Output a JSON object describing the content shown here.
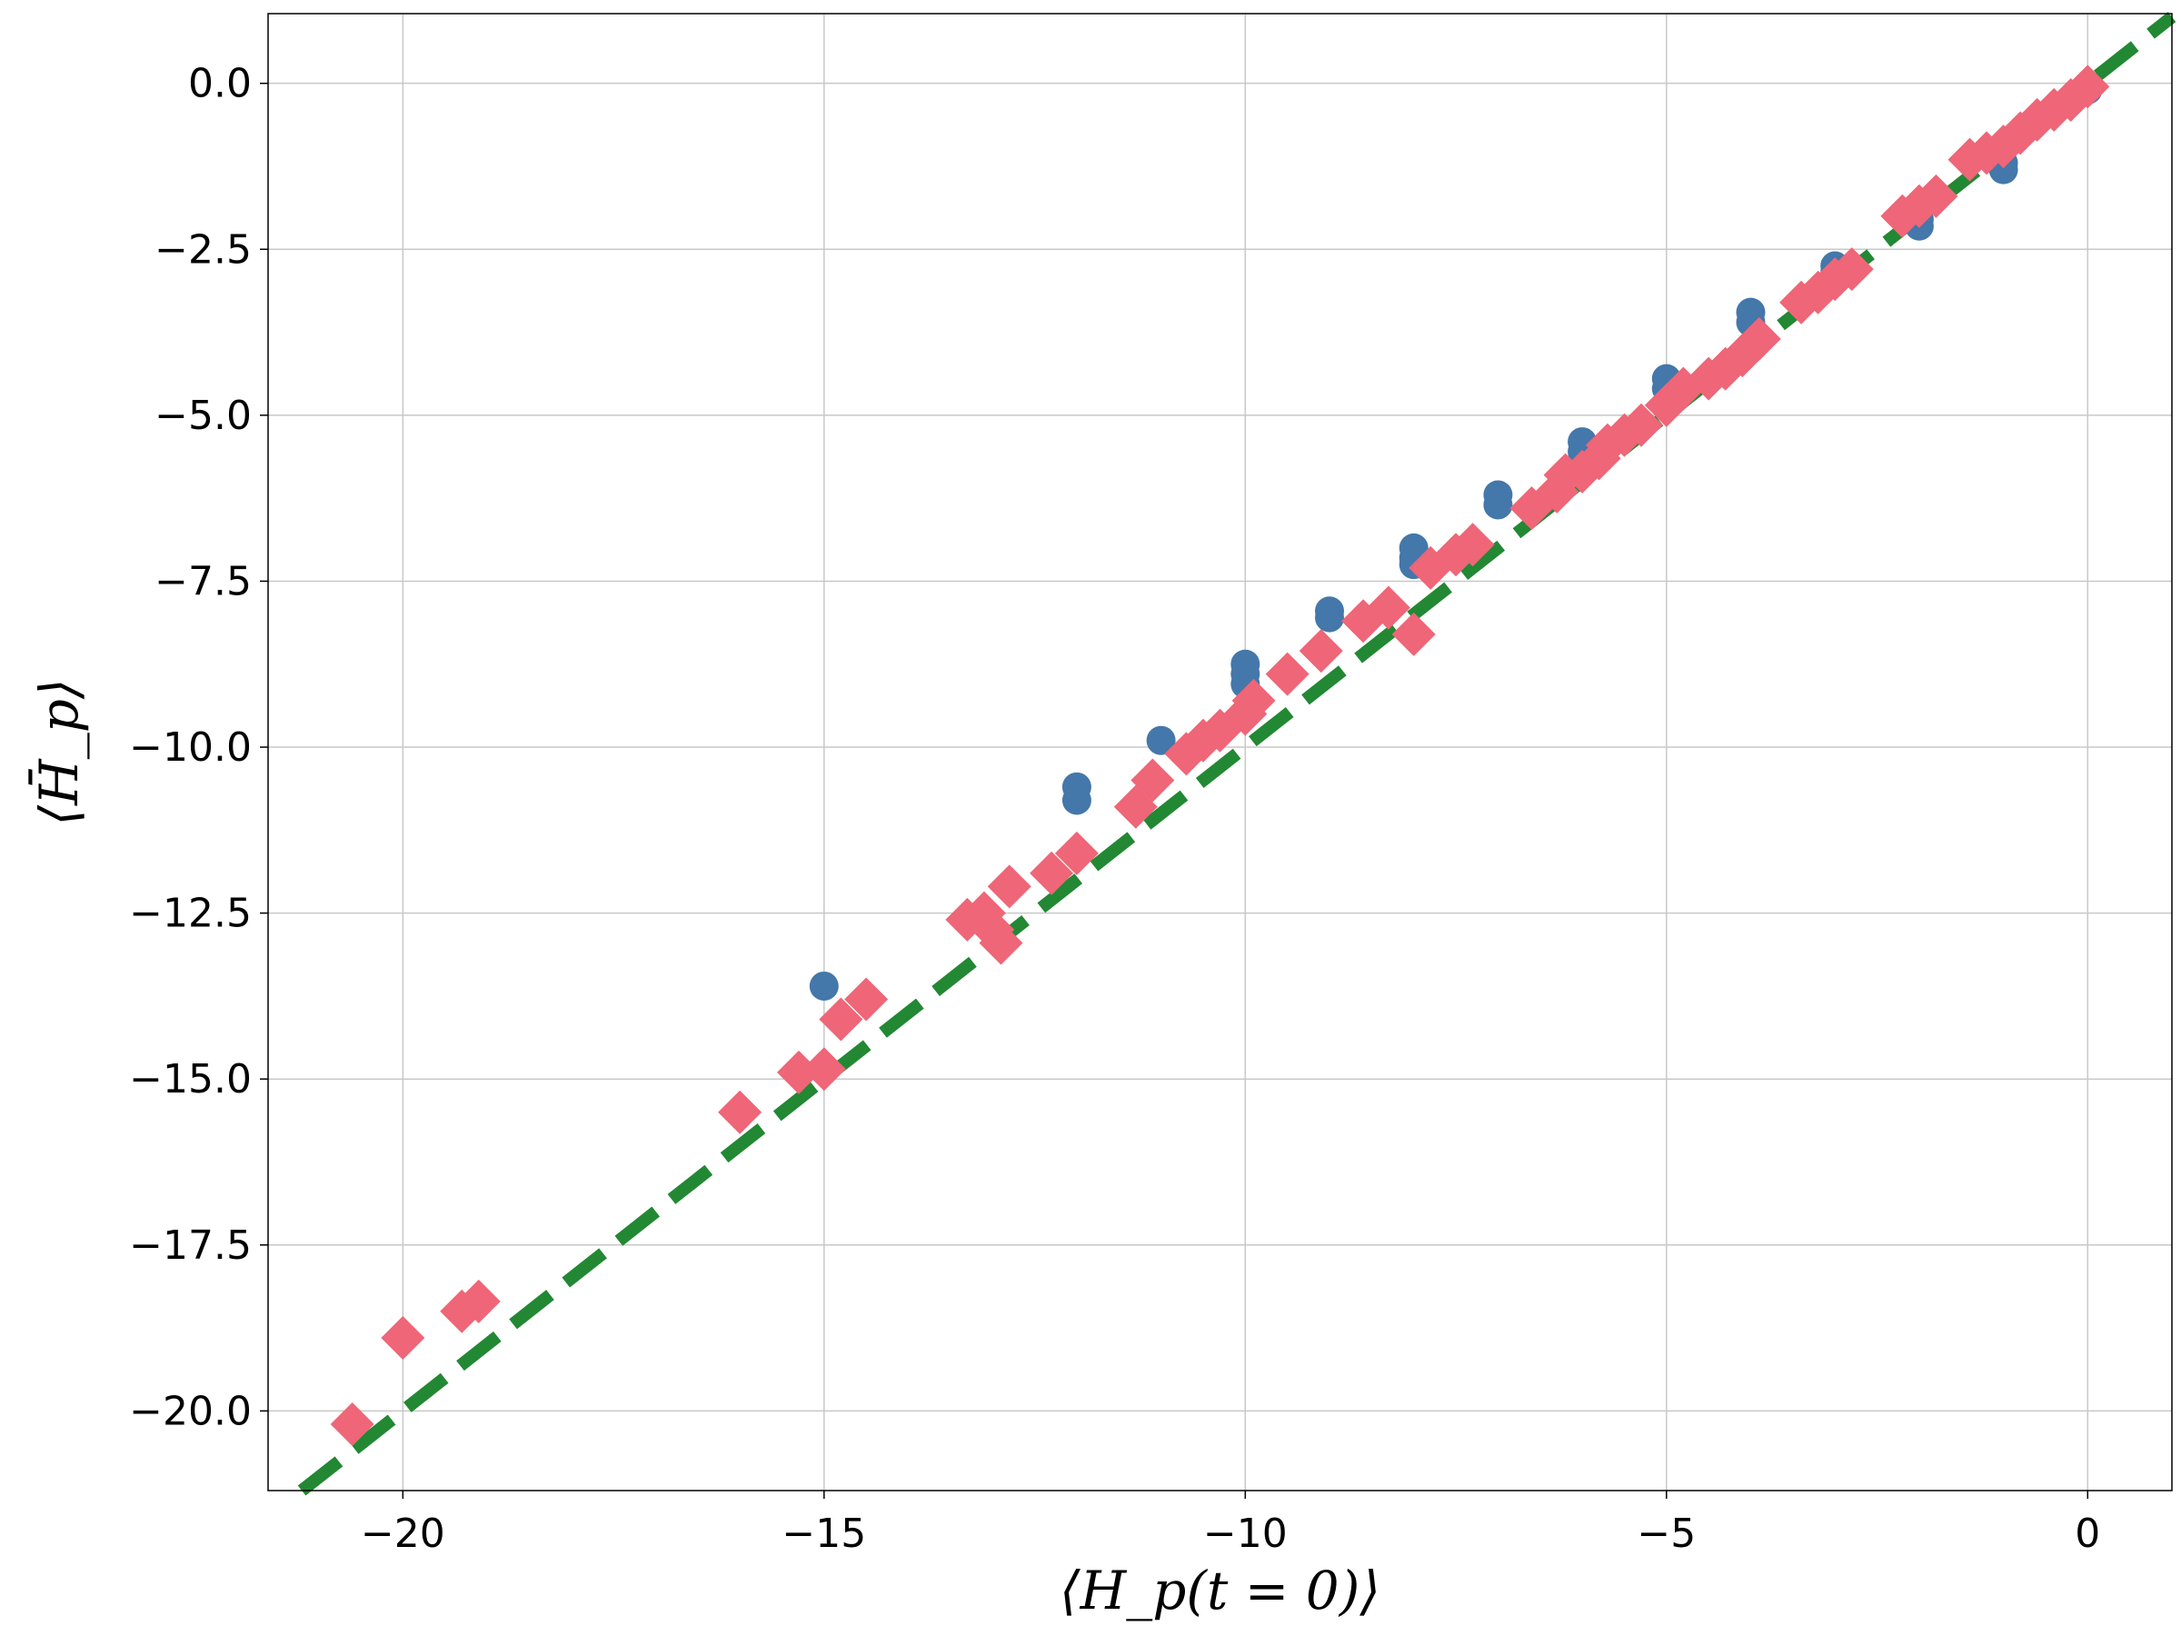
{
  "chart_data": {
    "type": "scatter",
    "xlabel": "⟨H_p(t = 0)⟩",
    "ylabel": "⟨H̄_p⟩",
    "xlim": [
      -21.6,
      1.0
    ],
    "ylim": [
      -21.2,
      1.05
    ],
    "grid": true,
    "xticks": [
      -20,
      -15,
      -10,
      -5,
      0
    ],
    "xtick_labels": [
      "−20",
      "−15",
      "−10",
      "−5",
      "0"
    ],
    "yticks": [
      0.0,
      -2.5,
      -5.0,
      -7.5,
      -10.0,
      -12.5,
      -15.0,
      -17.5,
      -20.0
    ],
    "ytick_labels": [
      "0.0",
      "−2.5",
      "−5.0",
      "−7.5",
      "−10.0",
      "−12.5",
      "−15.0",
      "−17.5",
      "−20.0"
    ],
    "series": [
      {
        "marker": "circle",
        "color": "#4477aa",
        "points": [
          [
            -15,
            -13.6
          ],
          [
            -12,
            -10.6
          ],
          [
            -12,
            -10.8
          ],
          [
            -11,
            -9.9
          ],
          [
            -10,
            -8.75
          ],
          [
            -10,
            -8.9
          ],
          [
            -10,
            -9.05
          ],
          [
            -9,
            -7.95
          ],
          [
            -9,
            -8.05
          ],
          [
            -8,
            -7.0
          ],
          [
            -8,
            -7.15
          ],
          [
            -8,
            -7.25
          ],
          [
            -7,
            -6.2
          ],
          [
            -7,
            -6.35
          ],
          [
            -6,
            -5.4
          ],
          [
            -6,
            -5.55
          ],
          [
            -5,
            -4.45
          ],
          [
            -5,
            -4.6
          ],
          [
            -4,
            -3.45
          ],
          [
            -4,
            -3.6
          ],
          [
            -3,
            -2.75
          ],
          [
            -3,
            -2.85
          ],
          [
            -2,
            -2.05
          ],
          [
            -2,
            -2.15
          ],
          [
            -1,
            -1.2
          ],
          [
            -1,
            -1.3
          ],
          [
            0,
            -0.1
          ]
        ]
      },
      {
        "marker": "diamond",
        "color": "#ee6677",
        "points": [
          [
            -20.6,
            -20.2
          ],
          [
            -20.0,
            -18.9
          ],
          [
            -19.3,
            -18.5
          ],
          [
            -19.1,
            -18.35
          ],
          [
            -16.0,
            -15.5
          ],
          [
            -15.3,
            -14.9
          ],
          [
            -15.0,
            -14.85
          ],
          [
            -14.8,
            -14.1
          ],
          [
            -14.5,
            -13.8
          ],
          [
            -13.3,
            -12.6
          ],
          [
            -13.1,
            -12.5
          ],
          [
            -13.0,
            -12.75
          ],
          [
            -12.9,
            -12.95
          ],
          [
            -12.8,
            -12.1
          ],
          [
            -12.3,
            -11.9
          ],
          [
            -12.0,
            -11.6
          ],
          [
            -11.3,
            -10.9
          ],
          [
            -11.1,
            -10.5
          ],
          [
            -10.7,
            -10.1
          ],
          [
            -10.5,
            -9.9
          ],
          [
            -10.3,
            -9.75
          ],
          [
            -10.0,
            -9.5
          ],
          [
            -9.9,
            -9.3
          ],
          [
            -9.5,
            -8.9
          ],
          [
            -9.1,
            -8.55
          ],
          [
            -8.6,
            -8.1
          ],
          [
            -8.3,
            -7.9
          ],
          [
            -8.0,
            -8.3
          ],
          [
            -7.8,
            -7.3
          ],
          [
            -7.5,
            -7.1
          ],
          [
            -7.3,
            -6.95
          ],
          [
            -6.6,
            -6.4
          ],
          [
            -6.3,
            -6.15
          ],
          [
            -6.2,
            -5.9
          ],
          [
            -6.0,
            -5.85
          ],
          [
            -5.8,
            -5.65
          ],
          [
            -5.7,
            -5.45
          ],
          [
            -5.5,
            -5.3
          ],
          [
            -5.3,
            -5.15
          ],
          [
            -5.0,
            -4.85
          ],
          [
            -4.8,
            -4.6
          ],
          [
            -4.5,
            -4.45
          ],
          [
            -4.3,
            -4.3
          ],
          [
            -4.1,
            -4.1
          ],
          [
            -3.9,
            -3.85
          ],
          [
            -3.4,
            -3.3
          ],
          [
            -3.2,
            -3.15
          ],
          [
            -3.0,
            -2.95
          ],
          [
            -2.8,
            -2.8
          ],
          [
            -2.2,
            -2.0
          ],
          [
            -2.0,
            -1.85
          ],
          [
            -1.8,
            -1.7
          ],
          [
            -1.4,
            -1.15
          ],
          [
            -1.2,
            -1.05
          ],
          [
            -1.0,
            -0.95
          ],
          [
            -0.8,
            -0.75
          ],
          [
            -0.6,
            -0.55
          ],
          [
            -0.4,
            -0.4
          ],
          [
            -0.2,
            -0.25
          ],
          [
            0.0,
            -0.05
          ]
        ]
      }
    ],
    "reference_line": {
      "style": "dashed",
      "color": "#228833",
      "slope": 1,
      "intercept": 0
    }
  }
}
